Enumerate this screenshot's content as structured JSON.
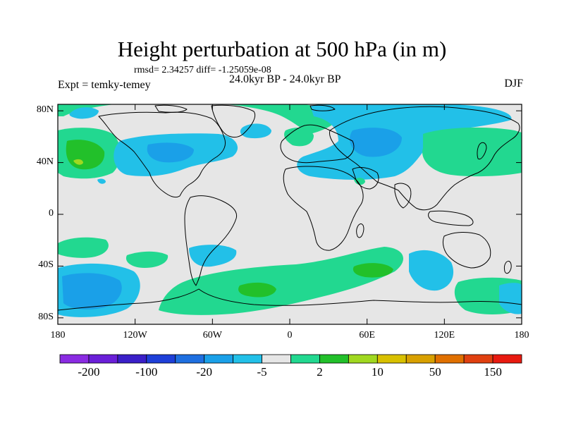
{
  "title": "Height perturbation at 500 hPa (in m)",
  "stats": "rmsd= 2.34257 diff= -1.25059e-08",
  "experiment": "Expt = temky-temey",
  "period": "24.0kyr BP - 24.0kyr BP",
  "season": "DJF",
  "lat_labels": [
    {
      "lat": 80,
      "text": "80N"
    },
    {
      "lat": 40,
      "text": "40N"
    },
    {
      "lat": 0,
      "text": "0"
    },
    {
      "lat": -40,
      "text": "40S"
    },
    {
      "lat": -80,
      "text": "80S"
    }
  ],
  "lon_labels": [
    {
      "lon": -180,
      "text": "180"
    },
    {
      "lon": -120,
      "text": "120W"
    },
    {
      "lon": -60,
      "text": "60W"
    },
    {
      "lon": 0,
      "text": "0"
    },
    {
      "lon": 60,
      "text": "60E"
    },
    {
      "lon": 120,
      "text": "120E"
    },
    {
      "lon": 180,
      "text": "180"
    }
  ],
  "colorbar": {
    "colors": [
      "#8a2be2",
      "#6a1fd8",
      "#3a1fc8",
      "#1e3fd8",
      "#1e6fe0",
      "#1aa0e8",
      "#22c0e8",
      "#e6e6e6",
      "#22d890",
      "#22c02a",
      "#a0d820",
      "#d8c000",
      "#d8a000",
      "#e07000",
      "#e04010",
      "#e81a10"
    ],
    "labels": [
      {
        "after": 1,
        "text": "-200"
      },
      {
        "after": 3,
        "text": "-100"
      },
      {
        "after": 5,
        "text": "-20"
      },
      {
        "after": 7,
        "text": "-5"
      },
      {
        "after": 9,
        "text": "2"
      },
      {
        "after": 11,
        "text": "10"
      },
      {
        "after": 13,
        "text": "50"
      },
      {
        "after": 15,
        "text": "150"
      }
    ]
  },
  "colors": {
    "background": "#e6e6e6",
    "light_blue": "#22c0e8",
    "mid_blue": "#1aa0e8",
    "blue": "#1e6fe0",
    "green": "#22d890",
    "dark_green": "#22c02a",
    "yellow_green": "#a0d820"
  }
}
